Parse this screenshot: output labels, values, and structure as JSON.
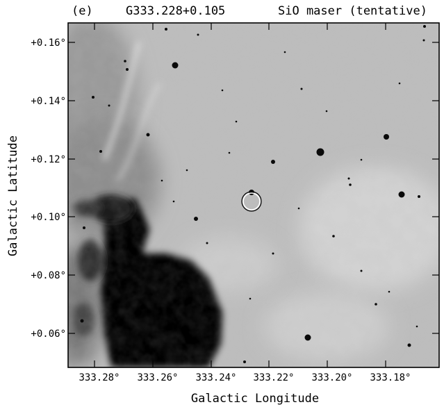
{
  "header": {
    "panel_label": "(e)",
    "source_name": "G333.228+0.105",
    "maser_note": "SiO maser (tentative)"
  },
  "axes": {
    "xlabel": "Galactic Longitude",
    "ylabel": "Galactic Latitude",
    "x_ticks": [
      "333.28°",
      "333.26°",
      "333.24°",
      "333.22°",
      "333.20°",
      "333.18°"
    ],
    "y_ticks": [
      "+0.16°",
      "+0.14°",
      "+0.12°",
      "+0.10°",
      "+0.08°",
      "+0.06°"
    ]
  },
  "colors": {
    "background": "#ffffff",
    "image_base": "#bcbcbc",
    "dark_cloud": "#050505",
    "marker_circle": "#ffffff"
  },
  "map": {
    "colormap": "grayscale-inverted",
    "marker": "circle-marker",
    "marker_target": "G333.228+0.105"
  }
}
